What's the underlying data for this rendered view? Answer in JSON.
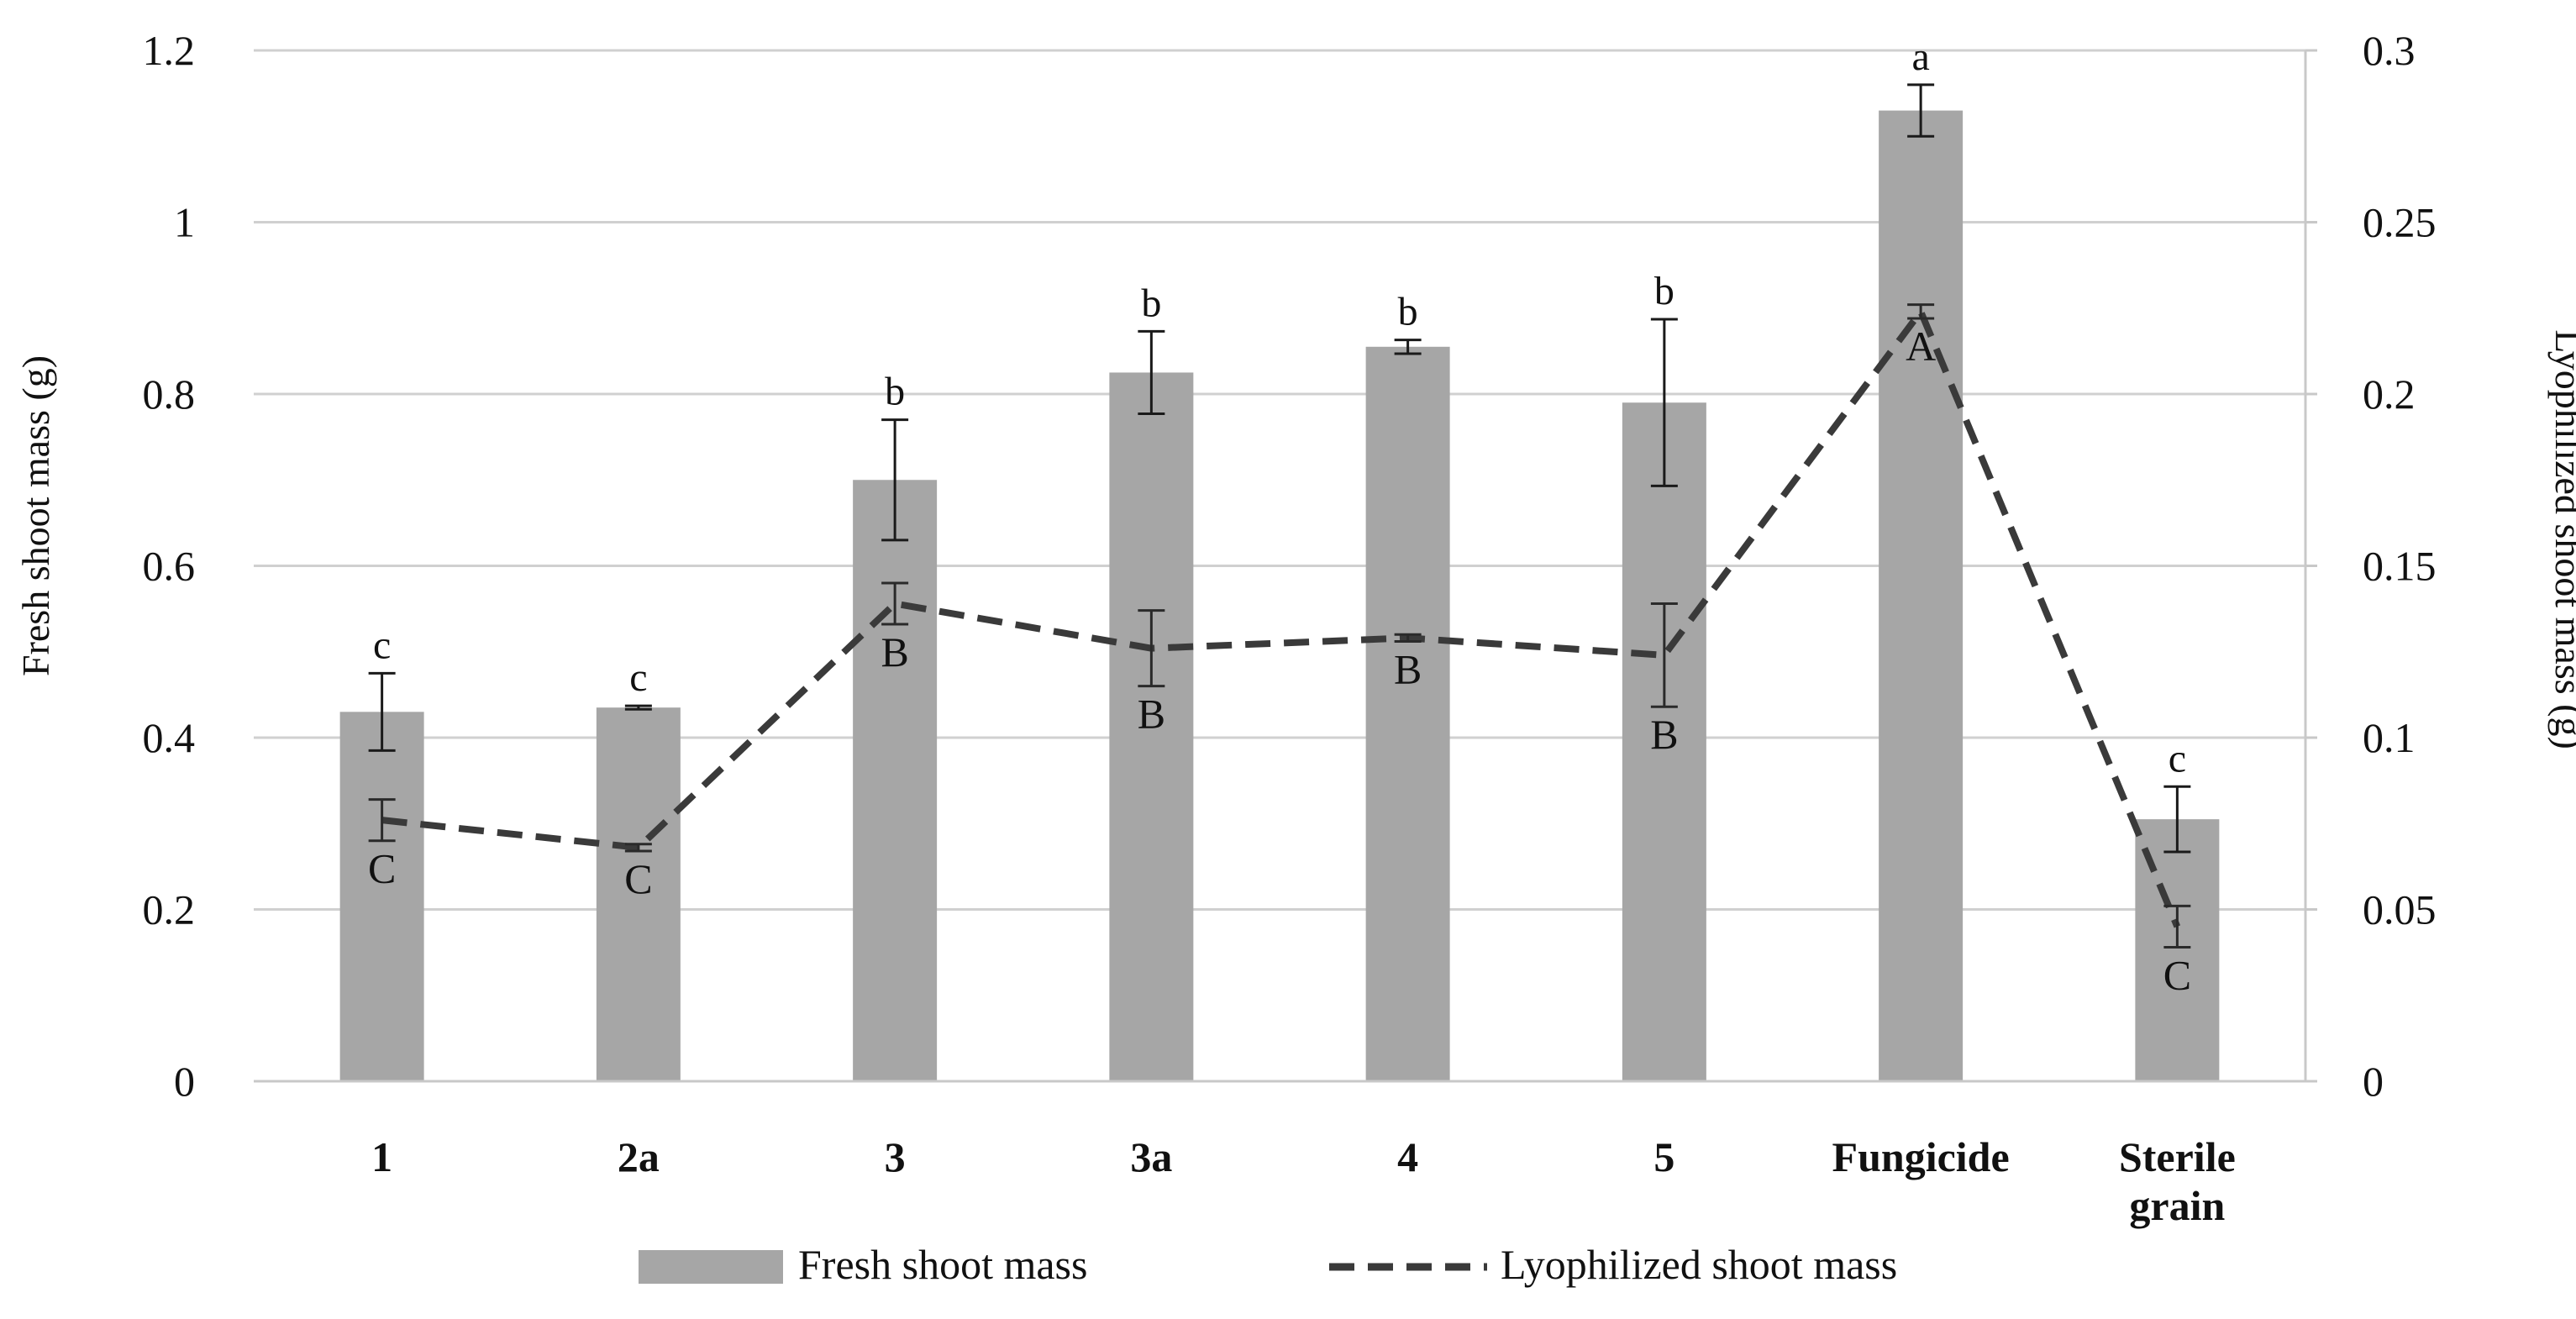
{
  "chart_data": {
    "type": "bar+line",
    "categories": [
      "1",
      "2a",
      "3",
      "3a",
      "4",
      "5",
      "Fungicide",
      "Sterile grain"
    ],
    "category_lines": [
      [
        "1"
      ],
      [
        "2a"
      ],
      [
        "3"
      ],
      [
        "3a"
      ],
      [
        "4"
      ],
      [
        "5"
      ],
      [
        "Fungicide"
      ],
      [
        "Sterile",
        "grain"
      ]
    ],
    "series": [
      {
        "name": "Fresh shoot mass",
        "kind": "bar",
        "axis": "left",
        "color": "#a6a6a6",
        "values": [
          0.43,
          0.435,
          0.7,
          0.825,
          0.855,
          0.79,
          1.13,
          0.305
        ],
        "errors": [
          0.045,
          0.002,
          0.07,
          0.048,
          0.008,
          0.097,
          0.03,
          0.038
        ],
        "labels": [
          "c",
          "c",
          "b",
          "b",
          "b",
          "b",
          "a",
          "c"
        ]
      },
      {
        "name": "Lyophilized shoot mass",
        "kind": "line",
        "axis": "right",
        "color": "#3a3a3a",
        "style": "dashed",
        "values": [
          0.076,
          0.068,
          0.139,
          0.126,
          0.129,
          0.124,
          0.224,
          0.045
        ],
        "errors": [
          0.006,
          0.001,
          0.006,
          0.011,
          0.001,
          0.015,
          0.002,
          0.006
        ],
        "labels": [
          "C",
          "C",
          "B",
          "B",
          "B",
          "B",
          "A",
          "C"
        ]
      }
    ],
    "left_axis": {
      "title": "Fresh shoot mass (g)",
      "range": [
        0,
        1.2
      ],
      "ticks": [
        "0",
        "0.2",
        "0.4",
        "0.6",
        "0.8",
        "1",
        "1.2"
      ]
    },
    "right_axis": {
      "title": "Lyophilized  shoot mass (g)",
      "range": [
        0,
        0.3
      ],
      "ticks": [
        "0",
        "0.05",
        "0.1",
        "0.15",
        "0.2",
        "0.25",
        "0.3"
      ]
    },
    "grid": true,
    "legend_position": "bottom"
  }
}
